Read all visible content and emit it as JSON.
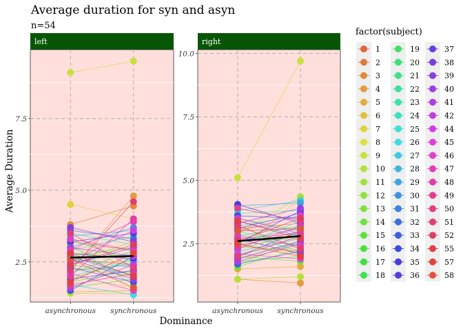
{
  "chart_data": {
    "type": "line",
    "title": "Average duration for syn and asyn",
    "subtitle": "n=54",
    "xlabel": "Dominance",
    "ylabel": "Average Duration",
    "categories": [
      "asynchronous",
      "synchronous"
    ],
    "legend_title": "factor(subject)",
    "legend_position": "right",
    "grid": true,
    "colors": {
      "panel_bg": "#FFDFDC",
      "strip_bg": "#065606",
      "grid_major": "#AEAEAE",
      "grid_minor": "#ffffff",
      "mean_line": "#000000",
      "legend_bg": "#EFEFEF"
    },
    "subjects": [
      "1",
      "2",
      "3",
      "4",
      "5",
      "6",
      "7",
      "8",
      "9",
      "10",
      "11",
      "12",
      "13",
      "14",
      "15",
      "16",
      "17",
      "18",
      "19",
      "20",
      "21",
      "22",
      "23",
      "24",
      "25",
      "26",
      "27",
      "28",
      "29",
      "30",
      "31",
      "32",
      "33",
      "34",
      "35",
      "36",
      "37",
      "38",
      "39",
      "40",
      "41",
      "42",
      "44",
      "45",
      "46",
      "47",
      "48",
      "49",
      "50",
      "51",
      "52",
      "55",
      "57",
      "58"
    ],
    "panels": [
      {
        "label": "left",
        "ylim": [
          1.1,
          9.9
        ],
        "yticks": [
          2.5,
          5.0,
          7.5
        ],
        "ytick_labels": [
          "2.5",
          "5.0",
          "7.5"
        ],
        "mean": [
          2.65,
          2.7
        ],
        "values": [
          [
            3.2,
            2.9
          ],
          [
            2.6,
            2.4
          ],
          [
            3.8,
            4.45
          ],
          [
            2.2,
            4.8
          ],
          [
            1.45,
            1.5
          ],
          [
            3.0,
            2.3
          ],
          [
            4.5,
            4.0
          ],
          [
            2.0,
            1.6
          ],
          [
            9.1,
            9.5
          ],
          [
            1.4,
            1.4
          ],
          [
            2.8,
            2.7
          ],
          [
            2.5,
            3.2
          ],
          [
            2.3,
            2.0
          ],
          [
            1.9,
            2.6
          ],
          [
            2.7,
            3.0
          ],
          [
            1.6,
            1.9
          ],
          [
            2.4,
            2.1
          ],
          [
            3.3,
            2.5
          ],
          [
            2.1,
            2.9
          ],
          [
            1.8,
            2.2
          ],
          [
            2.9,
            3.4
          ],
          [
            3.1,
            1.7
          ],
          [
            2.5,
            2.8
          ],
          [
            3.5,
            3.1
          ],
          [
            2.6,
            2.3
          ],
          [
            1.7,
            1.35
          ],
          [
            2.0,
            2.5
          ],
          [
            3.4,
            3.6
          ],
          [
            2.2,
            2.4
          ],
          [
            3.0,
            3.7
          ],
          [
            2.7,
            2.0
          ],
          [
            3.6,
            3.3
          ],
          [
            1.5,
            2.7
          ],
          [
            2.3,
            1.8
          ],
          [
            2.8,
            2.6
          ],
          [
            3.2,
            3.5
          ],
          [
            1.9,
            2.2
          ],
          [
            2.4,
            3.0
          ],
          [
            3.7,
            3.2
          ],
          [
            2.6,
            1.9
          ],
          [
            3.0,
            2.7
          ],
          [
            1.6,
            2.4
          ],
          [
            2.5,
            3.6
          ],
          [
            2.1,
            1.5
          ],
          [
            3.3,
            2.9
          ],
          [
            2.9,
            3.9
          ],
          [
            2.0,
            4.0
          ],
          [
            1.7,
            2.1
          ],
          [
            3.5,
            2.3
          ],
          [
            2.2,
            4.6
          ],
          [
            2.4,
            3.1
          ],
          [
            2.8,
            2.0
          ],
          [
            1.8,
            2.8
          ],
          [
            2.6,
            1.6
          ]
        ]
      },
      {
        "label": "right",
        "ylim": [
          0.2,
          10.15
        ],
        "yticks": [
          2.5,
          5.0,
          7.5,
          10.0
        ],
        "ytick_labels": [
          "2.5",
          "5.0",
          "7.5",
          "10.0"
        ],
        "mean": [
          2.6,
          2.8
        ],
        "values": [
          [
            2.7,
            2.9
          ],
          [
            2.4,
            2.2
          ],
          [
            3.1,
            3.3
          ],
          [
            1.1,
            0.95
          ],
          [
            1.5,
            1.6
          ],
          [
            1.9,
            2.4
          ],
          [
            2.2,
            4.3
          ],
          [
            2.5,
            2.1
          ],
          [
            5.1,
            9.7
          ],
          [
            1.1,
            1.2
          ],
          [
            2.9,
            4.35
          ],
          [
            3.3,
            2.0
          ],
          [
            1.7,
            2.6
          ],
          [
            2.0,
            1.8
          ],
          [
            1.6,
            2.3
          ],
          [
            2.6,
            2.7
          ],
          [
            2.3,
            2.9
          ],
          [
            1.8,
            2.0
          ],
          [
            3.5,
            3.0
          ],
          [
            2.8,
            3.2
          ],
          [
            2.1,
            2.5
          ],
          [
            3.0,
            2.4
          ],
          [
            3.7,
            3.8
          ],
          [
            2.4,
            3.4
          ],
          [
            2.9,
            2.2
          ],
          [
            3.2,
            3.6
          ],
          [
            3.8,
            4.2
          ],
          [
            2.2,
            2.7
          ],
          [
            4.0,
            4.1
          ],
          [
            2.6,
            3.1
          ],
          [
            3.4,
            2.8
          ],
          [
            2.0,
            3.0
          ],
          [
            1.7,
            2.2
          ],
          [
            3.6,
            3.5
          ],
          [
            4.05,
            3.3
          ],
          [
            2.5,
            3.8
          ],
          [
            1.9,
            2.6
          ],
          [
            3.1,
            3.7
          ],
          [
            2.7,
            2.1
          ],
          [
            3.3,
            3.9
          ],
          [
            1.8,
            2.5
          ],
          [
            2.3,
            3.2
          ],
          [
            3.5,
            2.9
          ],
          [
            2.1,
            1.9
          ],
          [
            3.0,
            3.6
          ],
          [
            2.8,
            2.4
          ],
          [
            2.4,
            3.0
          ],
          [
            3.9,
            3.4
          ],
          [
            2.0,
            2.8
          ],
          [
            3.2,
            2.3
          ],
          [
            2.6,
            3.5
          ],
          [
            3.4,
            2.7
          ],
          [
            2.5,
            2.0
          ],
          [
            3.0,
            3.1
          ]
        ]
      }
    ]
  }
}
